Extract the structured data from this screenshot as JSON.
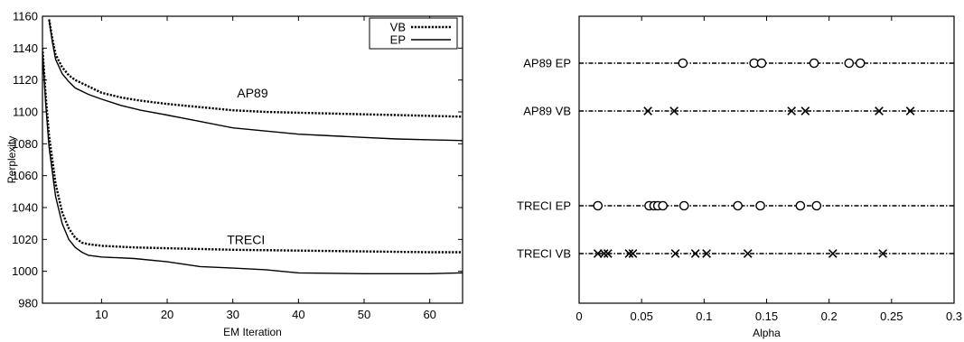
{
  "chart_data": [
    {
      "type": "line",
      "title": "",
      "xlabel": "EM Iteration",
      "ylabel": "Perplexity",
      "xlim": [
        1,
        65
      ],
      "ylim": [
        980,
        1160
      ],
      "xticks": [
        10,
        20,
        30,
        40,
        50,
        60
      ],
      "yticks": [
        980,
        1000,
        1020,
        1040,
        1060,
        1080,
        1100,
        1120,
        1140,
        1160
      ],
      "legend": {
        "placement": "top-right",
        "entries": [
          "VB",
          "EP"
        ]
      },
      "annotations": [
        {
          "text": "AP89",
          "x": 33,
          "y": 1109
        },
        {
          "text": "TRECI",
          "x": 32,
          "y": 1017
        }
      ],
      "series": [
        {
          "name": "VB",
          "style": "dotted",
          "groups": [
            {
              "x": [
                2,
                2.5,
                3,
                4,
                5,
                6,
                8,
                10,
                13,
                16,
                20,
                25,
                30,
                35,
                40,
                45,
                50,
                55,
                60,
                65
              ],
              "y": [
                1158,
                1146,
                1136,
                1128,
                1123,
                1120,
                1116,
                1112,
                1109,
                1107,
                1105,
                1103,
                1101,
                1100,
                1099.5,
                1099,
                1098.5,
                1098,
                1097.5,
                1097
              ]
            },
            {
              "x": [
                1,
                1.5,
                2,
                3,
                4,
                5,
                6,
                7,
                8,
                10,
                15,
                20,
                30,
                40,
                50,
                60,
                65
              ],
              "y": [
                1140,
                1110,
                1085,
                1055,
                1037,
                1027,
                1021,
                1018,
                1017,
                1016,
                1015,
                1014.5,
                1013.5,
                1013,
                1012.5,
                1012,
                1012
              ]
            }
          ]
        },
        {
          "name": "EP",
          "style": "solid",
          "groups": [
            {
              "x": [
                2,
                2.5,
                3,
                4,
                5,
                6,
                8,
                10,
                13,
                16,
                20,
                25,
                30,
                35,
                40,
                45,
                50,
                55,
                60,
                65
              ],
              "y": [
                1158,
                1144,
                1133,
                1124,
                1119,
                1115,
                1111,
                1108,
                1104,
                1101,
                1098,
                1094,
                1090,
                1088,
                1086,
                1085,
                1084,
                1083,
                1082.5,
                1082
              ]
            },
            {
              "x": [
                1,
                1.5,
                2,
                3,
                4,
                5,
                6,
                7,
                8,
                10,
                15,
                20,
                25,
                30,
                35,
                40,
                50,
                60,
                65
              ],
              "y": [
                1138,
                1105,
                1078,
                1047,
                1030,
                1020,
                1015,
                1012,
                1010,
                1009,
                1008,
                1006,
                1003,
                1002,
                1001,
                999,
                998.5,
                998.5,
                999
              ]
            }
          ]
        }
      ]
    },
    {
      "type": "scatter",
      "title": "",
      "xlabel": "Alpha",
      "ylabel": "",
      "xlim": [
        0,
        0.3
      ],
      "xticks": [
        "0",
        "0.05",
        "0.1",
        "0.15",
        "0.2",
        "0.25",
        "0.3"
      ],
      "rows": [
        {
          "label": "AP89 EP",
          "marker": "circle",
          "values": [
            0.083,
            0.14,
            0.146,
            0.188,
            0.216,
            0.225
          ]
        },
        {
          "label": "AP89 VB",
          "marker": "cross",
          "values": [
            0.055,
            0.076,
            0.17,
            0.181,
            0.24,
            0.265
          ]
        },
        {
          "label": "TRECI EP",
          "marker": "circle",
          "values": [
            0.015,
            0.056,
            0.06,
            0.063,
            0.067,
            0.084,
            0.127,
            0.145,
            0.177,
            0.19
          ]
        },
        {
          "label": "TRECI VB",
          "marker": "cross",
          "values": [
            0.015,
            0.02,
            0.023,
            0.04,
            0.043,
            0.077,
            0.093,
            0.102,
            0.135,
            0.203,
            0.243
          ]
        }
      ]
    }
  ]
}
